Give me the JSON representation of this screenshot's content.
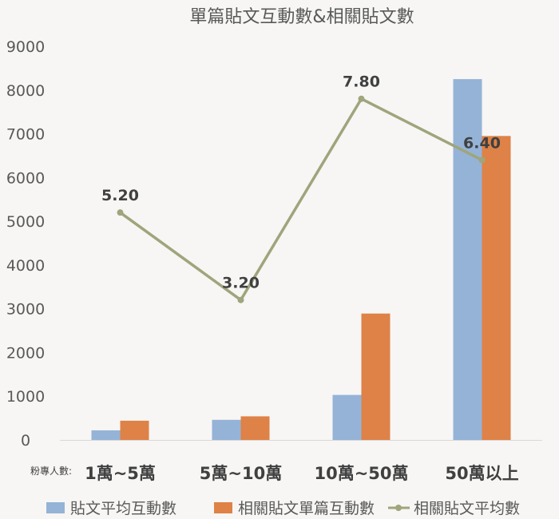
{
  "chart_data": {
    "type": "bar",
    "title": "單篇貼文互動數&相關貼文數",
    "x_prefix_label": "粉專人數:",
    "categories": [
      "1萬~5萬",
      "5萬~10萬",
      "10萬~50萬",
      "50萬以上"
    ],
    "ylim": [
      0,
      9000
    ],
    "yticks": [
      "0",
      "1000",
      "2000",
      "3000",
      "4000",
      "5000",
      "6000",
      "7000",
      "8000",
      "9000"
    ],
    "grid": false,
    "legend_position": "bottom",
    "series": [
      {
        "name": "貼文平均互動數",
        "type": "bar",
        "color": "#95b3d7",
        "values": [
          220,
          460,
          1030,
          8250
        ]
      },
      {
        "name": "相關貼文單篇互動數",
        "type": "bar",
        "color": "#de8247",
        "values": [
          440,
          540,
          2890,
          6950
        ]
      },
      {
        "name": "相關貼文平均數",
        "type": "line",
        "color": "#9fa57c",
        "values": [
          5.2,
          3.2,
          7.8,
          6.4
        ],
        "labels": [
          "5.20",
          "3.20",
          "7.80",
          "6.40"
        ],
        "axis_range": [
          0,
          9
        ]
      }
    ]
  }
}
